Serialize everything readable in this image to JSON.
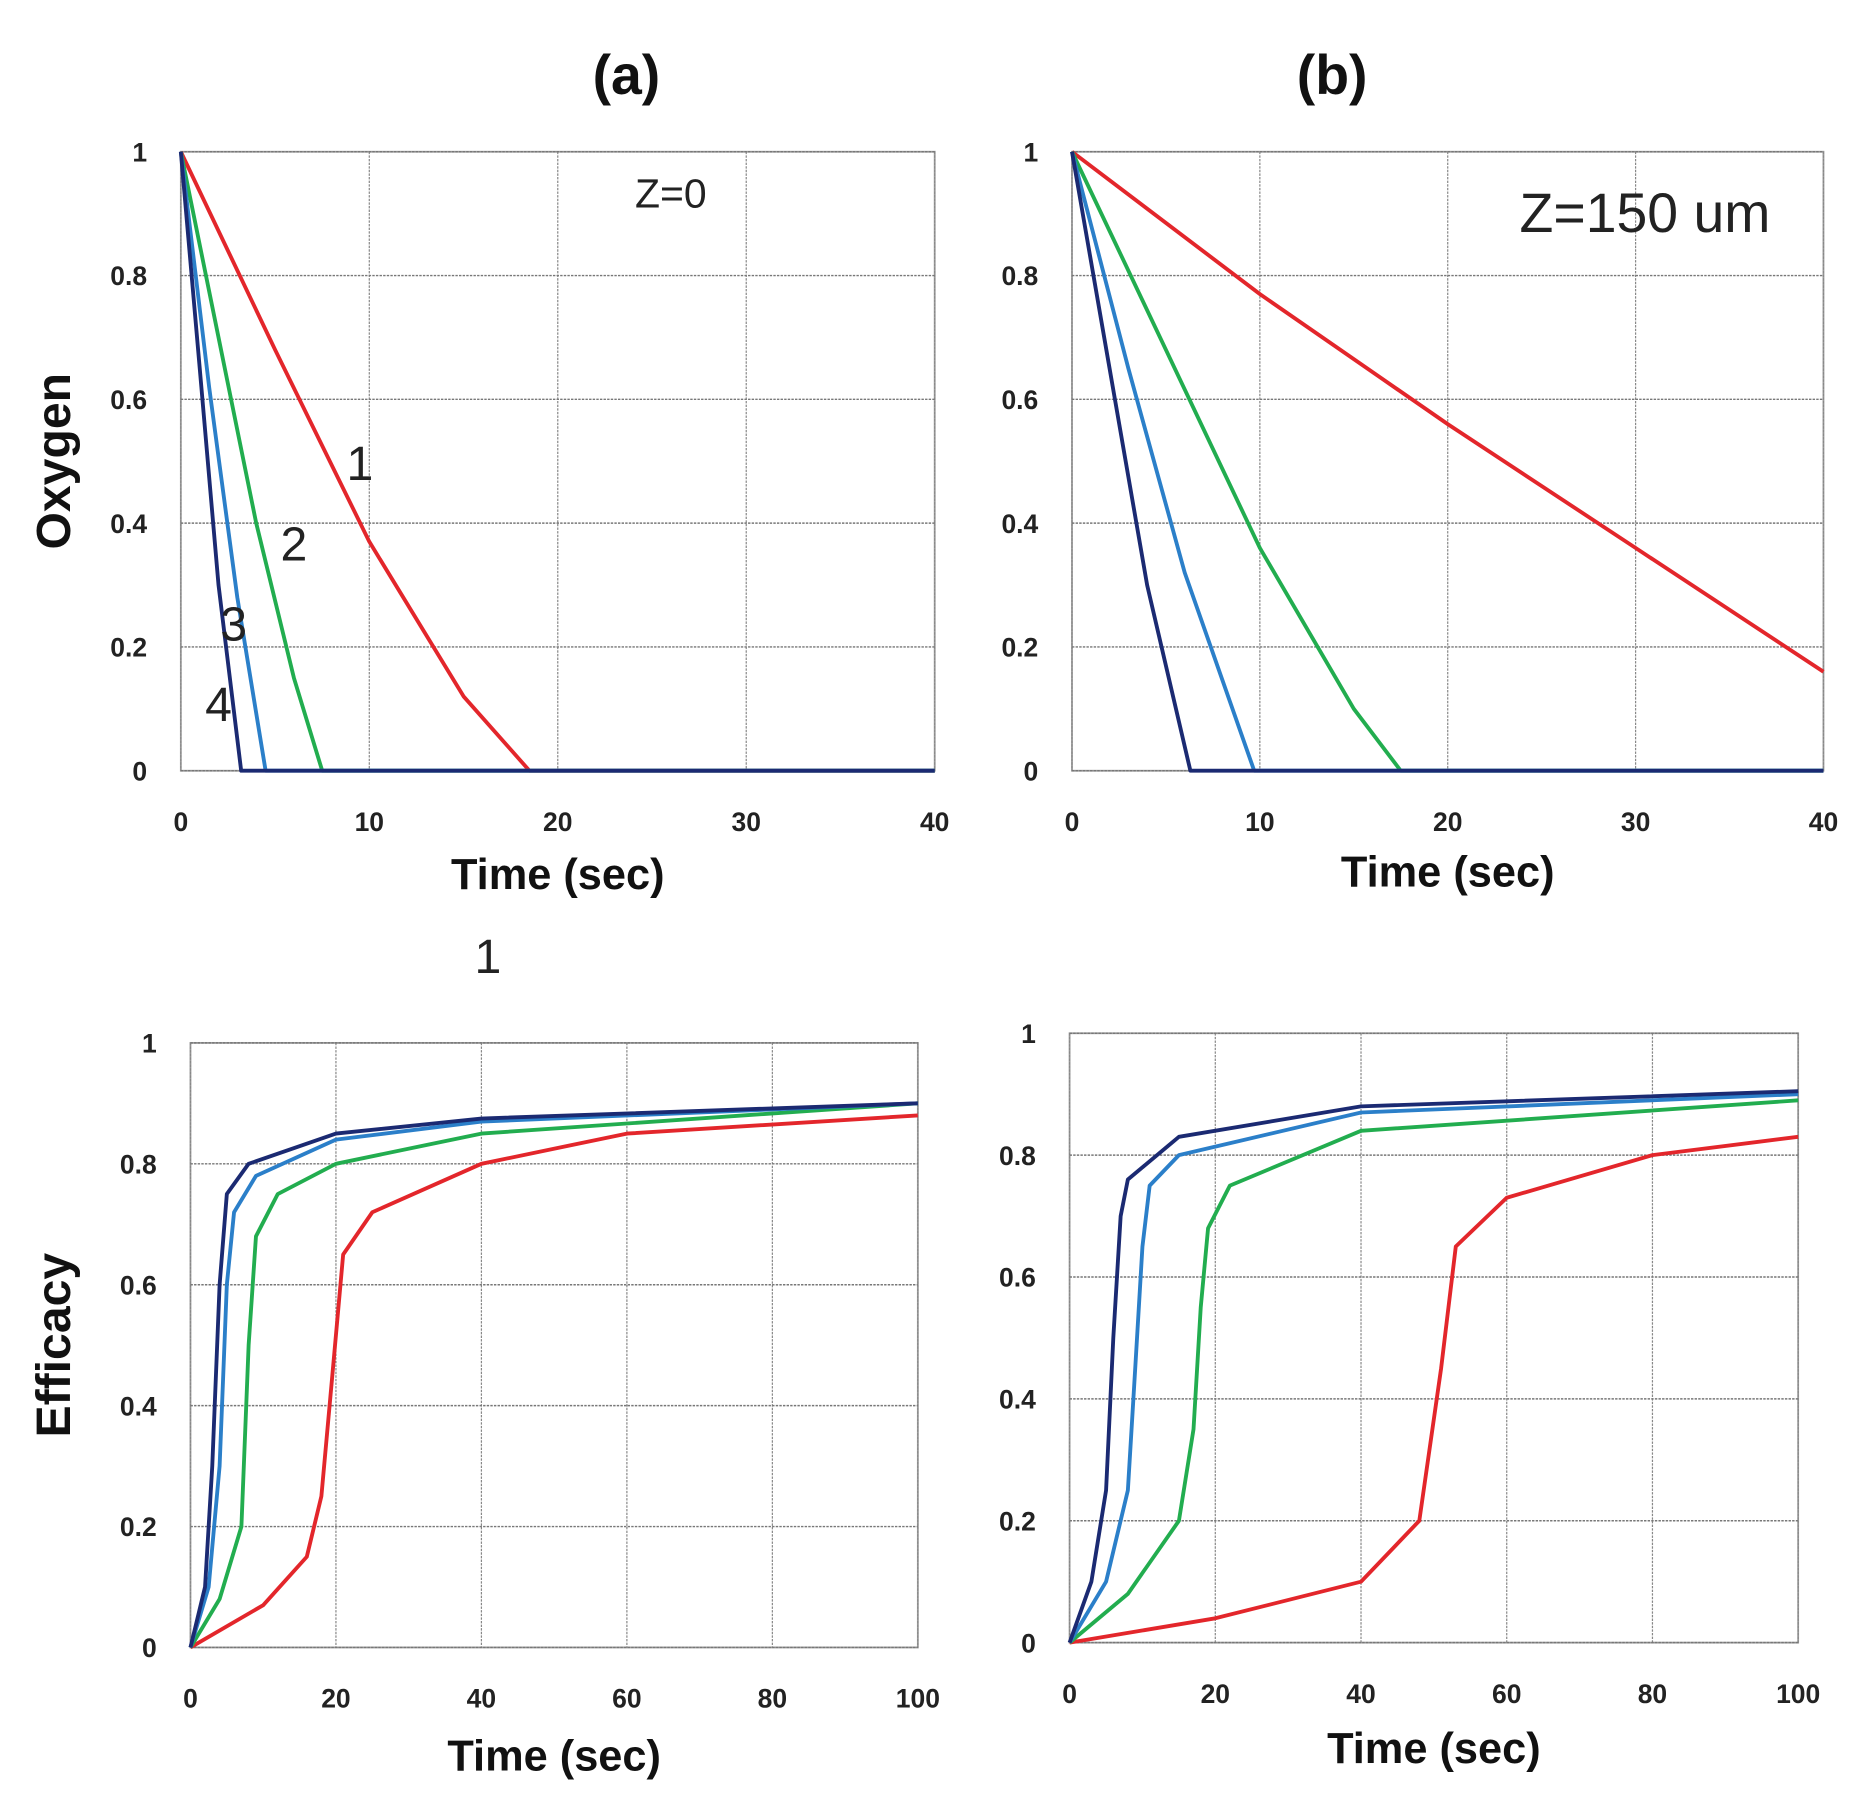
{
  "panel_titles": [
    "(a)",
    "(b)"
  ],
  "stray_label": "1",
  "colors": {
    "1": "#e3262b",
    "2": "#22ad4f",
    "3": "#2b7fc9",
    "4": "#1b2a72"
  },
  "chart_data": [
    {
      "type": "line",
      "id": "oxygen-a",
      "xlabel": "Time (sec)",
      "ylabel": "Oxygen",
      "xlim": [
        0,
        40
      ],
      "ylim": [
        0,
        1
      ],
      "xticks": [
        0,
        10,
        20,
        30,
        40
      ],
      "yticks": [
        0,
        0.2,
        0.4,
        0.6,
        0.8,
        1
      ],
      "grid": true,
      "annotations": [
        {
          "text": "Z=0",
          "x": 26,
          "y": 0.91
        },
        {
          "text": "1",
          "x": 9.5,
          "y": 0.47
        },
        {
          "text": "2",
          "x": 6,
          "y": 0.34
        },
        {
          "text": "3",
          "x": 2.8,
          "y": 0.21
        },
        {
          "text": "4",
          "x": 2,
          "y": 0.08
        }
      ],
      "series": [
        {
          "name": "1",
          "x": [
            0,
            5,
            10,
            15,
            18.5,
            40
          ],
          "y": [
            1,
            0.68,
            0.37,
            0.12,
            0,
            0
          ]
        },
        {
          "name": "2",
          "x": [
            0,
            2,
            4,
            6,
            7.5,
            40
          ],
          "y": [
            1,
            0.7,
            0.4,
            0.15,
            0,
            0
          ]
        },
        {
          "name": "3",
          "x": [
            0,
            1.5,
            3,
            4.5,
            40
          ],
          "y": [
            1,
            0.62,
            0.28,
            0,
            0
          ]
        },
        {
          "name": "4",
          "x": [
            0,
            1,
            2,
            3.2,
            40
          ],
          "y": [
            1,
            0.65,
            0.3,
            0,
            0
          ]
        }
      ]
    },
    {
      "type": "line",
      "id": "oxygen-b",
      "xlabel": "Time (sec)",
      "ylabel": "",
      "xlim": [
        0,
        40
      ],
      "ylim": [
        0,
        1
      ],
      "xticks": [
        0,
        10,
        20,
        30,
        40
      ],
      "yticks": [
        0,
        0.2,
        0.4,
        0.6,
        0.8,
        1
      ],
      "grid": true,
      "annotations": [
        {
          "text": "Z=150 um",
          "x": 30.5,
          "y": 0.87
        }
      ],
      "series": [
        {
          "name": "1",
          "x": [
            0,
            10,
            20,
            30,
            40
          ],
          "y": [
            1,
            0.77,
            0.56,
            0.36,
            0.16
          ]
        },
        {
          "name": "2",
          "x": [
            0,
            5,
            10,
            15,
            17.5,
            40
          ],
          "y": [
            1,
            0.68,
            0.36,
            0.1,
            0,
            0
          ]
        },
        {
          "name": "3",
          "x": [
            0,
            3,
            6,
            9.7,
            40
          ],
          "y": [
            1,
            0.65,
            0.32,
            0,
            0
          ]
        },
        {
          "name": "4",
          "x": [
            0,
            2,
            4,
            6.3,
            40
          ],
          "y": [
            1,
            0.65,
            0.3,
            0,
            0
          ]
        }
      ]
    },
    {
      "type": "line",
      "id": "efficacy-a",
      "xlabel": "Time (sec)",
      "ylabel": "Efficacy",
      "xlim": [
        0,
        100
      ],
      "ylim": [
        0,
        1
      ],
      "xticks": [
        0,
        20,
        40,
        60,
        80,
        100
      ],
      "yticks": [
        0,
        0.2,
        0.4,
        0.6,
        0.8,
        1
      ],
      "grid": true,
      "annotations": [],
      "series": [
        {
          "name": "1",
          "x": [
            0,
            10,
            16,
            18,
            19.5,
            21,
            25,
            40,
            60,
            100
          ],
          "y": [
            0,
            0.07,
            0.15,
            0.25,
            0.45,
            0.65,
            0.72,
            0.8,
            0.85,
            0.88
          ]
        },
        {
          "name": "2",
          "x": [
            0,
            4,
            7,
            8,
            9,
            12,
            20,
            40,
            100
          ],
          "y": [
            0,
            0.08,
            0.2,
            0.5,
            0.68,
            0.75,
            0.8,
            0.85,
            0.9
          ]
        },
        {
          "name": "3",
          "x": [
            0,
            2.5,
            4,
            5,
            6,
            9,
            20,
            40,
            100
          ],
          "y": [
            0,
            0.1,
            0.3,
            0.6,
            0.72,
            0.78,
            0.84,
            0.87,
            0.9
          ]
        },
        {
          "name": "4",
          "x": [
            0,
            2,
            3,
            4,
            5,
            8,
            20,
            40,
            100
          ],
          "y": [
            0,
            0.1,
            0.3,
            0.6,
            0.75,
            0.8,
            0.85,
            0.875,
            0.9
          ]
        }
      ]
    },
    {
      "type": "line",
      "id": "efficacy-b",
      "xlabel": "Time (sec)",
      "ylabel": "",
      "xlim": [
        0,
        100
      ],
      "ylim": [
        0,
        1
      ],
      "xticks": [
        0,
        20,
        40,
        60,
        80,
        100
      ],
      "yticks": [
        0,
        0.2,
        0.4,
        0.6,
        0.8,
        1
      ],
      "grid": true,
      "annotations": [],
      "series": [
        {
          "name": "1",
          "x": [
            0,
            20,
            40,
            48,
            51,
            53,
            60,
            80,
            100
          ],
          "y": [
            0,
            0.04,
            0.1,
            0.2,
            0.45,
            0.65,
            0.73,
            0.8,
            0.83
          ]
        },
        {
          "name": "2",
          "x": [
            0,
            8,
            15,
            17,
            18,
            19,
            22,
            40,
            100
          ],
          "y": [
            0,
            0.08,
            0.2,
            0.35,
            0.55,
            0.68,
            0.75,
            0.84,
            0.89
          ]
        },
        {
          "name": "3",
          "x": [
            0,
            5,
            8,
            9,
            10,
            11,
            15,
            40,
            100
          ],
          "y": [
            0,
            0.1,
            0.25,
            0.45,
            0.65,
            0.75,
            0.8,
            0.87,
            0.9
          ]
        },
        {
          "name": "4",
          "x": [
            0,
            3,
            5,
            6,
            7,
            8,
            15,
            40,
            100
          ],
          "y": [
            0,
            0.1,
            0.25,
            0.5,
            0.7,
            0.76,
            0.83,
            0.88,
            0.905
          ]
        }
      ]
    }
  ]
}
